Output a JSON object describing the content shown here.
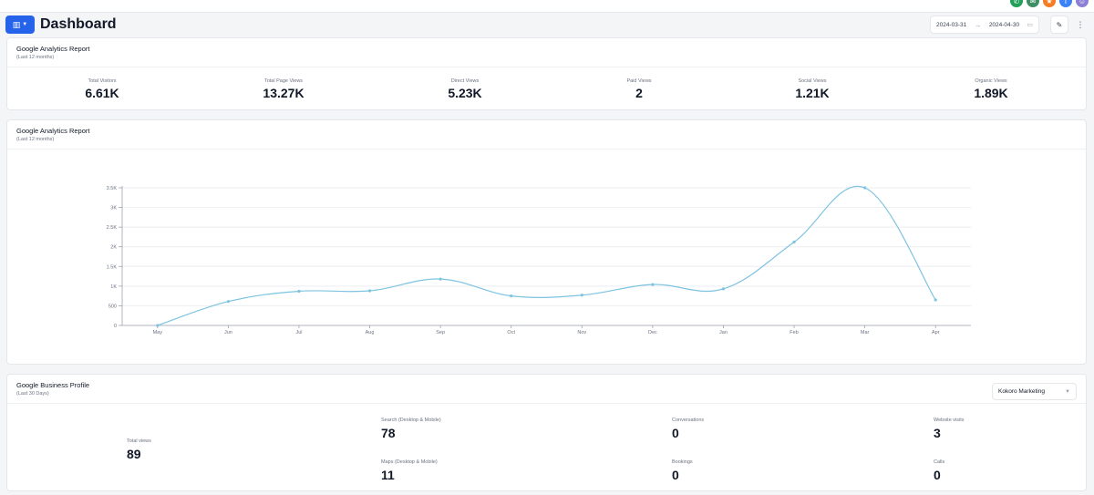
{
  "header": {
    "title": "Dashboard",
    "date_from": "2024-03-31",
    "date_to": "2024-04-30",
    "arrow": "→",
    "top_icons": [
      {
        "name": "phone-icon",
        "glyph": "✆",
        "color": "#22a05a"
      },
      {
        "name": "chat-icon",
        "glyph": "✉",
        "color": "#3f8f65"
      },
      {
        "name": "star-icon",
        "glyph": "★",
        "color": "#f57c23"
      },
      {
        "name": "facebook-icon",
        "glyph": "f",
        "color": "#3b82f6"
      },
      {
        "name": "user-avatar-icon",
        "glyph": "☺",
        "color": "#8b7fd6"
      }
    ]
  },
  "analytics_summary": {
    "title": "Google Analytics Report",
    "subtitle": "(Last 12 months)",
    "stats": [
      {
        "label": "Total Visitors",
        "value": "6.61K"
      },
      {
        "label": "Total Page Views",
        "value": "13.27K"
      },
      {
        "label": "Direct Views",
        "value": "5.23K"
      },
      {
        "label": "Paid Views",
        "value": "2"
      },
      {
        "label": "Social Views",
        "value": "1.21K"
      },
      {
        "label": "Organic Views",
        "value": "1.89K"
      }
    ]
  },
  "analytics_chart": {
    "title": "Google Analytics Report",
    "subtitle": "(Last 12 months)"
  },
  "chart_data": {
    "type": "line",
    "categories": [
      "May",
      "Jun",
      "Jul",
      "Aug",
      "Sep",
      "Oct",
      "Nov",
      "Dec",
      "Jan",
      "Feb",
      "Mar",
      "Apr"
    ],
    "series": [
      {
        "values": [
          0,
          610,
          870,
          880,
          1180,
          750,
          770,
          1040,
          930,
          2120,
          3500,
          650
        ],
        "color": "#7ec3e0"
      }
    ],
    "ylim": [
      0,
      3500
    ],
    "yticks": [
      0,
      500,
      1000,
      1500,
      2000,
      2500,
      3000,
      3500
    ],
    "ytick_labels": [
      "0",
      "500",
      "1K",
      "1.5K",
      "2K",
      "2.5K",
      "3K",
      "3.5K"
    ],
    "grid": true,
    "title": "",
    "xlabel": "",
    "ylabel": ""
  },
  "business_profile": {
    "title": "Google Business Profile",
    "subtitle": "(Last 30 Days)",
    "location": "Kokoro Marketing",
    "total": {
      "label": "Total views",
      "value": "89"
    },
    "metrics": [
      {
        "label": "Search (Desktop & Mobile)",
        "value": "78"
      },
      {
        "label": "Conversations",
        "value": "0"
      },
      {
        "label": "Website visits",
        "value": "3"
      },
      {
        "label": "Maps (Desktop & Mobile)",
        "value": "11"
      },
      {
        "label": "Bookings",
        "value": "0"
      },
      {
        "label": "Calls",
        "value": "0"
      }
    ]
  }
}
